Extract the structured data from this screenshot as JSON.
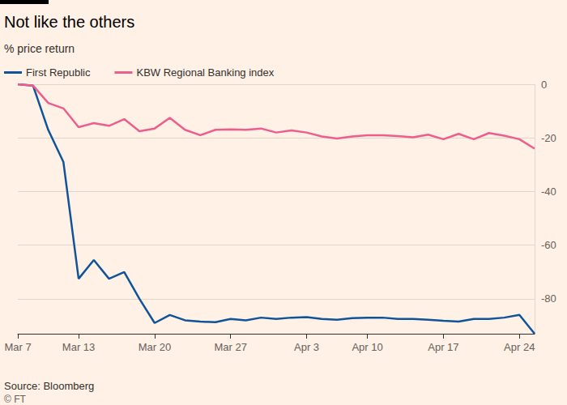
{
  "chart_data": {
    "type": "line",
    "title": "Not like the others",
    "subtitle": "% price return",
    "source": "Source: Bloomberg",
    "credit": "© FT",
    "categories": [
      "Mar 7",
      null,
      null,
      null,
      "Mar 13",
      null,
      null,
      null,
      null,
      "Mar 20",
      null,
      null,
      null,
      null,
      "Mar 27",
      null,
      null,
      null,
      null,
      "Apr 3",
      null,
      null,
      null,
      "Apr 10",
      null,
      null,
      null,
      null,
      "Apr 17",
      null,
      null,
      null,
      null,
      "Apr 24",
      null
    ],
    "series": [
      {
        "name": "First Republic",
        "color": "#0f5499",
        "values": [
          0,
          -0.5,
          -17,
          -29,
          -72.5,
          -65.5,
          -72.5,
          -70,
          -80,
          -89,
          -86,
          -88,
          -88.5,
          -88.7,
          -87.5,
          -88,
          -87,
          -87.5,
          -87,
          -86.8,
          -87.5,
          -87.8,
          -87.2,
          -87,
          -87,
          -87.5,
          -87.5,
          -87.8,
          -88.2,
          -88.5,
          -87.5,
          -87.5,
          -87,
          -86,
          -93
        ]
      },
      {
        "name": "KBW Regional Banking index",
        "color": "#eb5e8d",
        "values": [
          0,
          -0.5,
          -7,
          -9,
          -16,
          -14.5,
          -15.5,
          -13,
          -17.5,
          -16.5,
          -12.5,
          -17,
          -19,
          -17,
          -16.8,
          -17,
          -16.5,
          -18,
          -17.2,
          -18,
          -19.5,
          -20.2,
          -19.5,
          -19,
          -19,
          -19.3,
          -19.8,
          -18.8,
          -20.5,
          -18.5,
          -20.5,
          -18.2,
          -19.2,
          -20.5,
          -24
        ]
      }
    ],
    "ylim": [
      -93,
      0
    ],
    "yticks": [
      -80,
      -60,
      -40,
      -20,
      0
    ],
    "grid": true,
    "legend": "top-left"
  }
}
